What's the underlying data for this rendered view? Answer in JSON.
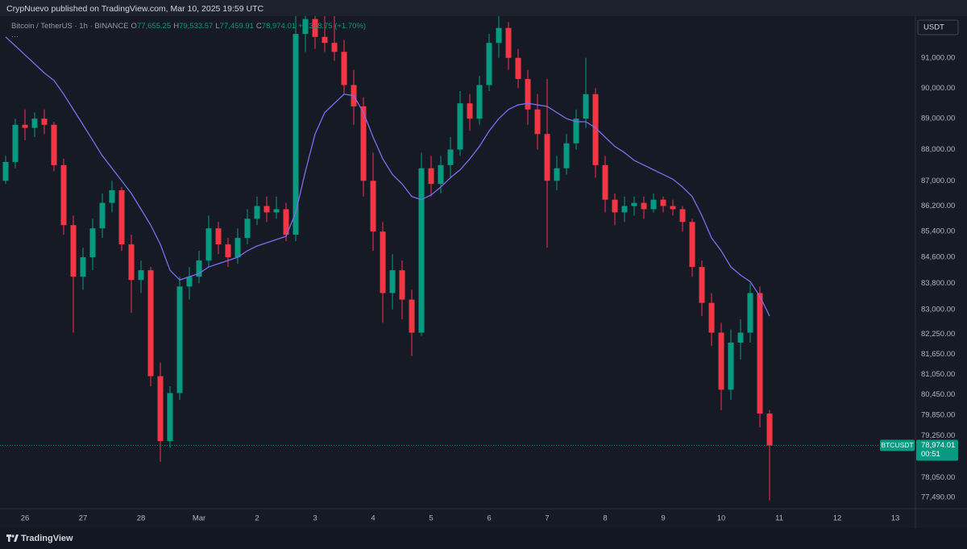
{
  "header": {
    "text": "CrypNuevo published on TradingView.com, Mar 10, 2025 19:59 UTC"
  },
  "footer": {
    "brand": "TradingView"
  },
  "chart_data": {
    "type": "candlestick",
    "title": "Bitcoin / TetherUS · 1h · BINANCE",
    "legend_values": [
      {
        "key": "O",
        "text": "77,655.25"
      },
      {
        "key": "H",
        "text": "79,533.57"
      },
      {
        "key": "L",
        "text": "77,459.91"
      },
      {
        "key": "C",
        "text": "78,974.01"
      },
      {
        "key": "",
        "text": "+1,318.75 (+1.70%)"
      }
    ],
    "currency": "USDT",
    "symbol": "BTCUSDT",
    "countdown": "00:51",
    "last_price": {
      "value": 78974.01,
      "label": "78,974.01"
    },
    "up_color": "#089981",
    "down_color": "#f23645",
    "log_scale": true,
    "grid": false,
    "ylim": [
      77190,
      92400
    ],
    "yticks": [
      {
        "value": 91000,
        "label": "91,000.00"
      },
      {
        "value": 90000,
        "label": "90,000.00"
      },
      {
        "value": 89000,
        "label": "89,000.00"
      },
      {
        "value": 88000,
        "label": "88,000.00"
      },
      {
        "value": 87000,
        "label": "87,000.00"
      },
      {
        "value": 86200,
        "label": "86,200.00"
      },
      {
        "value": 85400,
        "label": "85,400.00"
      },
      {
        "value": 84600,
        "label": "84,600.00"
      },
      {
        "value": 83800,
        "label": "83,800.00"
      },
      {
        "value": 83000,
        "label": "83,000.00"
      },
      {
        "value": 82250,
        "label": "82,250.00"
      },
      {
        "value": 81650,
        "label": "81,650.00"
      },
      {
        "value": 81050,
        "label": "81,050.00"
      },
      {
        "value": 80450,
        "label": "80,450.00"
      },
      {
        "value": 79850,
        "label": "79,850.00"
      },
      {
        "value": 79250,
        "label": "79,250.00"
      },
      {
        "value": 78050,
        "label": "78,050.00"
      },
      {
        "value": 77490,
        "label": "77,490.00"
      }
    ],
    "categories": [
      null,
      null,
      "26",
      null,
      null,
      null,
      null,
      null,
      "27",
      null,
      null,
      null,
      null,
      null,
      "28",
      null,
      null,
      null,
      null,
      null,
      "Mar",
      null,
      null,
      null,
      null,
      null,
      "2",
      null,
      null,
      null,
      null,
      null,
      "3",
      null,
      null,
      null,
      null,
      null,
      "4",
      null,
      null,
      null,
      null,
      null,
      "5",
      null,
      null,
      null,
      null,
      null,
      "6",
      null,
      null,
      null,
      null,
      null,
      "7",
      null,
      null,
      null,
      null,
      null,
      "8",
      null,
      null,
      null,
      null,
      null,
      "9",
      null,
      null,
      null,
      null,
      null,
      "10",
      null,
      null,
      null,
      null,
      null,
      "11",
      null,
      null,
      null,
      null,
      null,
      "12",
      null,
      null,
      null,
      null,
      null,
      "13",
      null
    ],
    "open": [
      87000,
      87600,
      88800,
      88700,
      89000,
      88800,
      87500,
      85600,
      84000,
      84600,
      85500,
      86300,
      86700,
      85000,
      83900,
      84200,
      81000,
      79100,
      80500,
      83700,
      84000,
      84500,
      85500,
      85000,
      84600,
      85200,
      85800,
      86200,
      86000,
      86100,
      85300,
      91800,
      92300,
      91700,
      91500,
      91200,
      90100,
      89400,
      87000,
      85400,
      83500,
      84200,
      83300,
      82300,
      87400,
      86900,
      87500,
      88000,
      89500,
      89000,
      90100,
      91500,
      92000,
      91000,
      90300,
      89300,
      88500,
      87000,
      87400,
      88200,
      89000,
      89800,
      87500,
      86400,
      86000,
      86200,
      86300,
      86100,
      86400,
      86200,
      86100,
      85700,
      84300,
      83200,
      82300,
      80600,
      82000,
      82300,
      83500,
      79900,
      null,
      null,
      null,
      null,
      null,
      null,
      null,
      null,
      null,
      null,
      null,
      null,
      null,
      null
    ],
    "high": [
      87800,
      89000,
      89300,
      89200,
      89300,
      88900,
      87700,
      85900,
      84900,
      85800,
      86600,
      87000,
      86800,
      85300,
      84500,
      84300,
      81400,
      80700,
      84000,
      84300,
      84800,
      85900,
      85700,
      85200,
      85500,
      86100,
      86500,
      86500,
      86500,
      86300,
      92600,
      93000,
      92800,
      92600,
      92500,
      91600,
      90600,
      89700,
      87900,
      85700,
      84700,
      84500,
      83600,
      87900,
      87800,
      87800,
      88400,
      89900,
      89800,
      90400,
      91800,
      92500,
      92200,
      91300,
      90600,
      89800,
      90300,
      87800,
      88500,
      89300,
      91000,
      90000,
      87800,
      86600,
      86500,
      86500,
      86500,
      86600,
      86500,
      86400,
      86200,
      85800,
      84500,
      83500,
      82600,
      82400,
      82700,
      83800,
      83700,
      80000,
      null,
      null,
      null,
      null,
      null,
      null,
      null,
      null,
      null,
      null,
      null,
      null,
      null,
      null
    ],
    "low": [
      86900,
      87400,
      88300,
      88400,
      88500,
      87300,
      85300,
      82300,
      83600,
      84200,
      85200,
      86000,
      84800,
      82900,
      83500,
      80700,
      78500,
      78900,
      80300,
      83300,
      83800,
      84300,
      84700,
      84300,
      84400,
      85000,
      85600,
      85700,
      85800,
      85100,
      85100,
      91200,
      91300,
      91200,
      90900,
      89800,
      88800,
      86500,
      84800,
      82600,
      83000,
      82700,
      81600,
      82200,
      86500,
      86600,
      87100,
      87800,
      88600,
      88800,
      89900,
      91000,
      90600,
      90000,
      88800,
      88000,
      84900,
      86700,
      87200,
      88000,
      88700,
      87100,
      86000,
      85600,
      85700,
      85900,
      85800,
      86000,
      86000,
      85900,
      85400,
      84000,
      82800,
      81900,
      80000,
      80300,
      81500,
      82000,
      79500,
      77400,
      null,
      null,
      null,
      null,
      null,
      null,
      null,
      null,
      null,
      null,
      null,
      null,
      null,
      null
    ],
    "close": [
      87600,
      88800,
      88700,
      89000,
      88800,
      87500,
      85600,
      84000,
      84600,
      85500,
      86300,
      86700,
      85000,
      83900,
      84200,
      81000,
      79100,
      80500,
      83700,
      84000,
      84500,
      85500,
      85000,
      84600,
      85200,
      85800,
      86200,
      86000,
      86100,
      85300,
      91800,
      92300,
      91700,
      91500,
      91200,
      90100,
      89400,
      87000,
      85400,
      83500,
      84200,
      83300,
      82300,
      87400,
      86900,
      87500,
      88000,
      89500,
      89000,
      90100,
      91500,
      92000,
      91000,
      90300,
      89300,
      88500,
      87000,
      87400,
      88200,
      89000,
      89800,
      87500,
      86400,
      86000,
      86200,
      86300,
      86100,
      86400,
      86200,
      86100,
      85700,
      84300,
      83200,
      82300,
      80600,
      82000,
      82300,
      83500,
      79900,
      78974.01,
      null,
      null,
      null,
      null,
      null,
      null,
      null,
      null,
      null,
      null,
      null,
      null,
      null,
      null
    ],
    "overlay": {
      "color": "#7e6cf0",
      "values": [
        91700,
        91400,
        91100,
        90800,
        90500,
        90250,
        89800,
        89300,
        88800,
        88300,
        87800,
        87400,
        87000,
        86600,
        86100,
        85600,
        85000,
        84200,
        83900,
        84000,
        84100,
        84300,
        84400,
        84500,
        84600,
        84800,
        84950,
        85050,
        85150,
        85250,
        86000,
        87300,
        88500,
        89200,
        89500,
        89800,
        89750,
        89200,
        88400,
        87700,
        87200,
        86900,
        86500,
        86400,
        86550,
        86800,
        87100,
        87350,
        87700,
        88100,
        88600,
        89000,
        89300,
        89450,
        89500,
        89450,
        89400,
        89200,
        89000,
        88900,
        88900,
        88700,
        88400,
        88100,
        87900,
        87650,
        87500,
        87350,
        87200,
        87050,
        86800,
        86500,
        85900,
        85200,
        84800,
        84300,
        84050,
        83850,
        83400,
        82800,
        null,
        null,
        null,
        null,
        null,
        null,
        null,
        null,
        null,
        null,
        null,
        null,
        null,
        null
      ]
    }
  }
}
